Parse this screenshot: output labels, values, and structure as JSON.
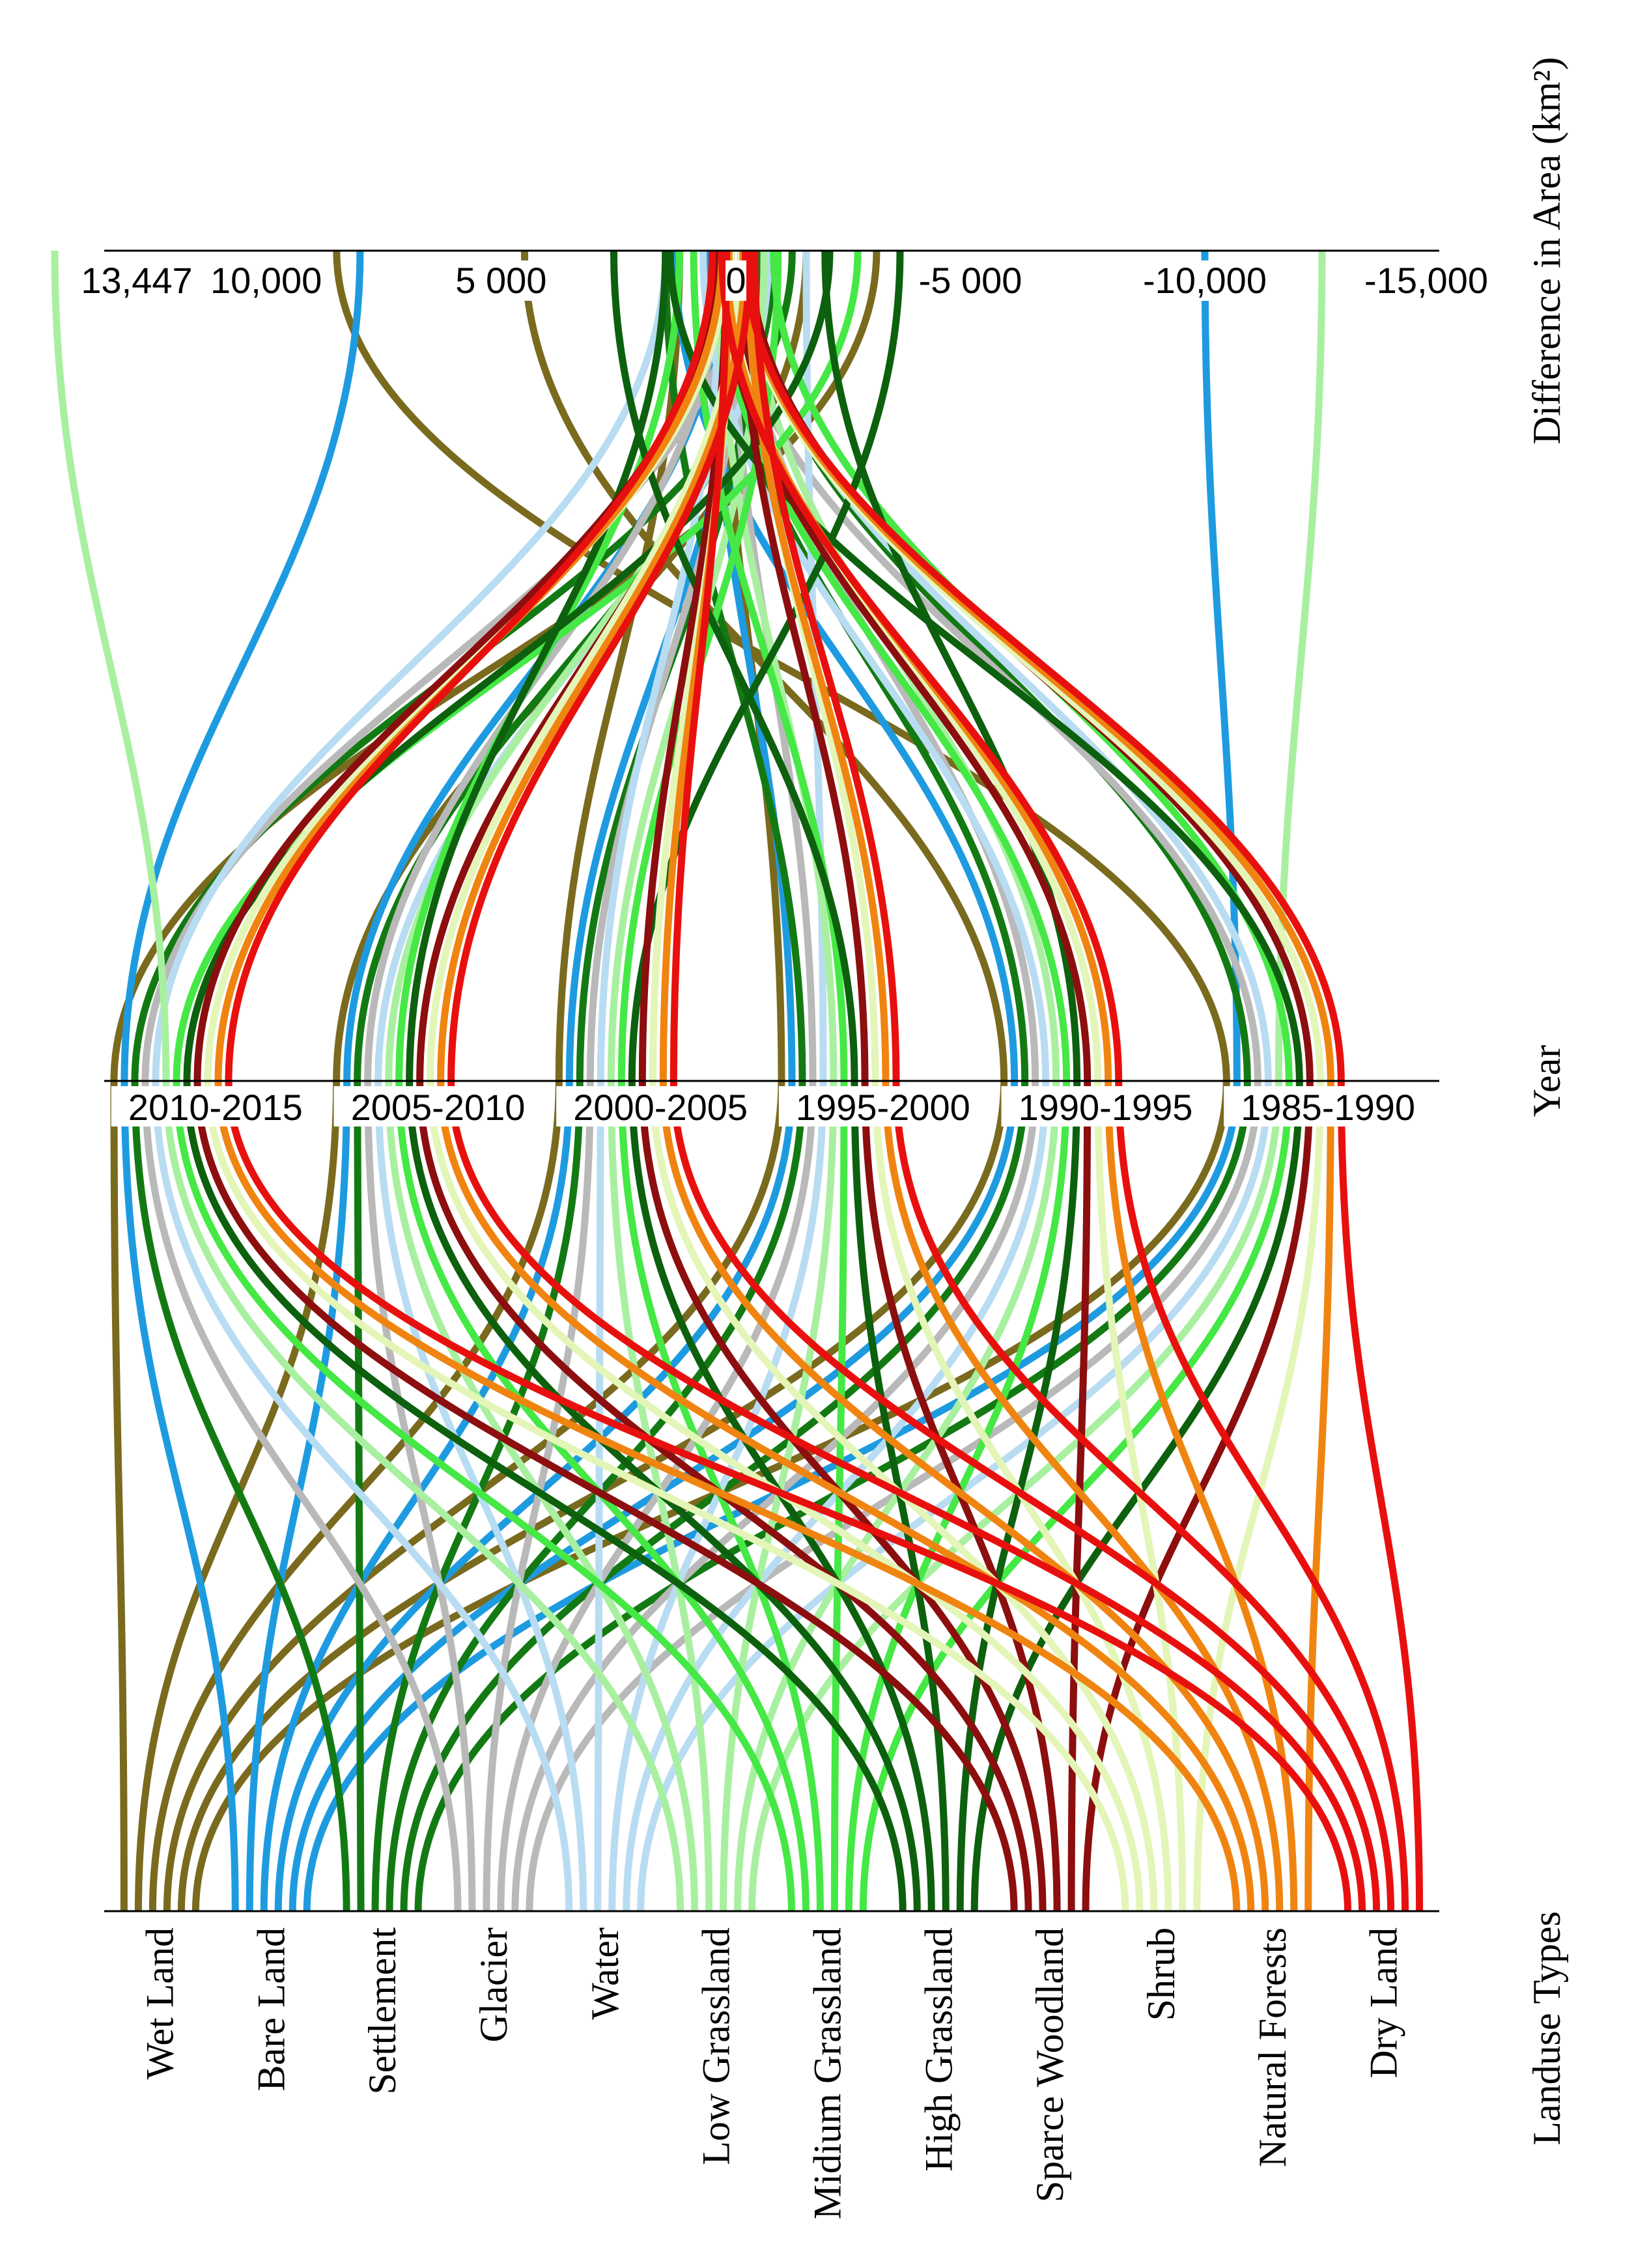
{
  "chart_data": {
    "type": "parallel-coordinates",
    "axes": {
      "difference": {
        "label": "Difference in Area (km²)",
        "ticks": [
          "13,447",
          "10,000",
          "5 000",
          "0",
          "-5 000",
          "-10,000",
          "-15,000"
        ],
        "tick_values": [
          13447,
          10000,
          5000,
          0,
          -5000,
          -10000,
          -15000
        ]
      },
      "year": {
        "label": "Year",
        "periods": [
          "2010-2015",
          "2005-2010",
          "2000-2005",
          "1995-2000",
          "1990-1995",
          "1985-1990"
        ]
      },
      "landuse": {
        "label": "Landuse Types",
        "types": [
          "Wet Land",
          "Bare Land",
          "Settlement",
          "Glacier",
          "Water",
          "Low Grassland",
          "Midium Grassland",
          "High Grassland",
          "Sparce Woodland",
          "Shrub",
          "Natural Forests",
          "Dry Land"
        ]
      }
    },
    "series": [
      {
        "name": "Wet Land",
        "color": "#7a6a1e",
        "values": [
          -3000,
          -1500,
          1200,
          300,
          4500,
          8500
        ]
      },
      {
        "name": "Bare Land",
        "color": "#1e9be0",
        "values": [
          8000,
          200,
          -200,
          600,
          1300,
          -10000
        ]
      },
      {
        "name": "Settlement",
        "color": "#137a13",
        "values": [
          -1200,
          -800,
          -500,
          1500,
          400,
          -300
        ]
      },
      {
        "name": "Glacier",
        "color": "#b9b9b9",
        "values": [
          -100,
          300,
          -200,
          100,
          -100,
          200
        ]
      },
      {
        "name": "Water",
        "color": "#b8dcf2",
        "values": [
          1500,
          -700,
          300,
          -1500,
          700,
          -300
        ]
      },
      {
        "name": "Low Grassland",
        "color": "#a8f0a0",
        "values": [
          14500,
          -400,
          -600,
          400,
          -300,
          -12500
        ]
      },
      {
        "name": "Midium Grassland",
        "color": "#45e845",
        "values": [
          -2600,
          1200,
          -900,
          900,
          400,
          -800
        ]
      },
      {
        "name": "High Grassland",
        "color": "#0d600d",
        "values": [
          -2000,
          1500,
          -3500,
          2600,
          -1900,
          1400
        ]
      },
      {
        "name": "Sparce Woodland",
        "color": "#8c0e0e",
        "values": [
          400,
          -200,
          200,
          -100,
          300,
          -300
        ]
      },
      {
        "name": "Shrub",
        "color": "#e4f5b8",
        "values": [
          200,
          -100,
          100,
          -300,
          150,
          -100
        ]
      },
      {
        "name": "Natural Forests",
        "color": "#f08410",
        "values": [
          300,
          -200,
          150,
          -250,
          200,
          -150
        ]
      },
      {
        "name": "Dry Land",
        "color": "#e8100e",
        "values": [
          500,
          -300,
          200,
          -400,
          300,
          -200
        ]
      }
    ]
  }
}
